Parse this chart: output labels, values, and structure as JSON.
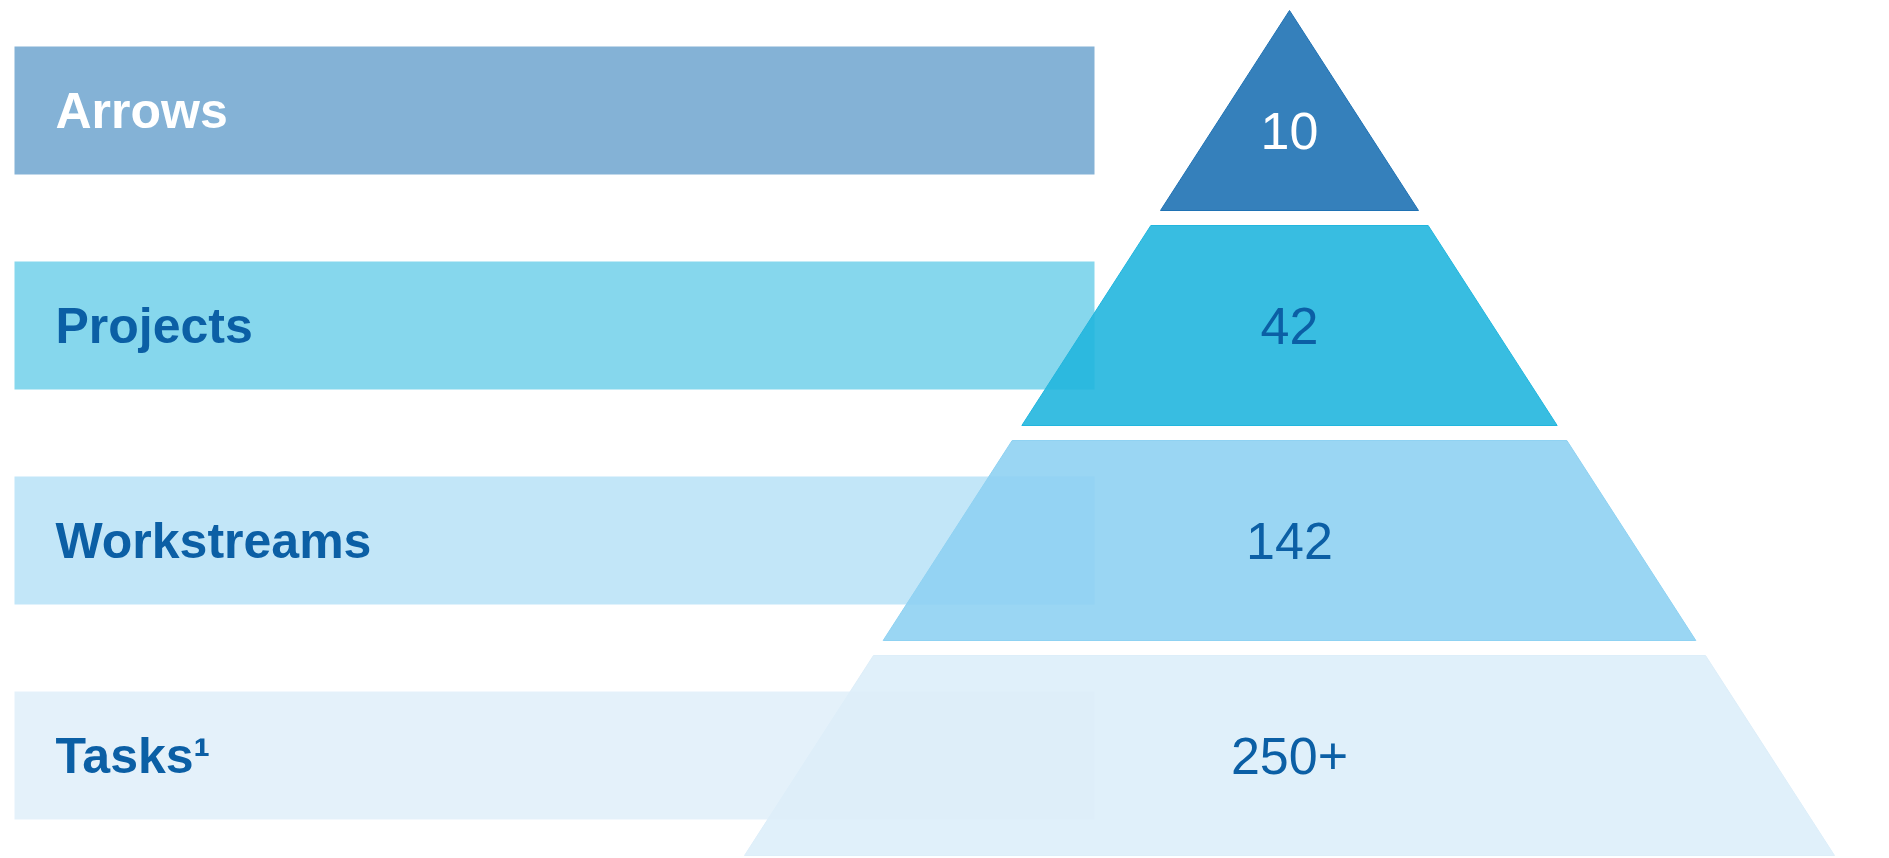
{
  "chart_data": {
    "type": "other",
    "categories": [
      "Arrows",
      "Projects",
      "Workstreams",
      "Tasks¹"
    ],
    "values": [
      10,
      42,
      142,
      null
    ],
    "data_labels": true,
    "annotations": [
      "250+"
    ],
    "colors": [
      "#1f72b4",
      "#22b6de",
      "#8fd2f2",
      "#ddeef9"
    ]
  }
}
